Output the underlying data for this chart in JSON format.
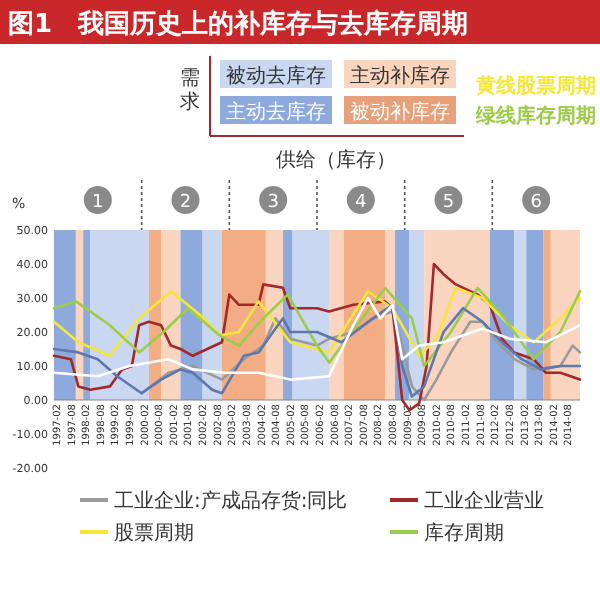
{
  "chart_data": {
    "type": "line",
    "title": "图1　我国历史上的补库存与去库存周期",
    "ylabel": "%",
    "xlim": [
      "1997-01",
      "2015-01"
    ],
    "xticks": [
      "1997-02",
      "1997-08",
      "1998-02",
      "1998-08",
      "1999-02",
      "1999-08",
      "2000-02",
      "2000-08",
      "2001-02",
      "2001-08",
      "2002-02",
      "2002-08",
      "2003-02",
      "2003-08",
      "2004-02",
      "2004-08",
      "2005-02",
      "2005-08",
      "2006-02",
      "2006-08",
      "2007-02",
      "2007-08",
      "2008-02",
      "2008-08",
      "2009-02",
      "2009-08",
      "2010-02",
      "2010-08",
      "2011-02",
      "2011-08",
      "2012-02",
      "2012-08",
      "2013-02",
      "2013-08",
      "2014-02",
      "2014-08"
    ],
    "ylim": [
      -20,
      50
    ],
    "yticks": [
      {
        "value": -20,
        "label": "-20.00"
      },
      {
        "value": -10,
        "label": "-10.00"
      },
      {
        "value": 0,
        "label": "0.00"
      },
      {
        "value": 10,
        "label": "10.00"
      },
      {
        "value": 20,
        "label": "20.00"
      },
      {
        "value": 30,
        "label": "30.00"
      },
      {
        "value": 40,
        "label": "40.00"
      },
      {
        "value": 50,
        "label": "50.00"
      }
    ],
    "legend": "bottom",
    "series": [
      {
        "name": "工业企业:产成品存货:同比",
        "color": "#9a9a9a",
        "x": [
          "2000-01",
          "2000-12",
          "2001-10",
          "2002-10",
          "2003-07",
          "2004-03",
          "2004-08",
          "2005-02",
          "2006-01",
          "2006-06",
          "2007-04",
          "2007-12",
          "2008-08",
          "2008-12",
          "2009-04",
          "2009-09",
          "2010-02",
          "2010-08",
          "2011-04",
          "2011-09",
          "2012-02",
          "2012-10",
          "2013-06",
          "2014-05",
          "2014-10",
          "2015-01"
        ],
        "values": [
          2,
          8,
          10,
          6,
          12,
          16,
          24,
          18,
          16,
          18,
          20,
          24,
          26,
          16,
          4,
          0,
          6,
          14,
          23,
          23,
          18,
          12,
          9,
          10,
          16,
          14
        ]
      },
      {
        "name": "工业企业营业",
        "color": "#a3282a",
        "x": [
          "1997-01",
          "1997-08",
          "1997-11",
          "1998-04",
          "1998-12",
          "1999-05",
          "1999-09",
          "1999-12",
          "2000-04",
          "2000-09",
          "2001-01",
          "2001-05",
          "2001-10",
          "2002-04",
          "2002-10",
          "2003-01",
          "2003-05",
          "2004-01",
          "2004-03",
          "2004-11",
          "2005-02",
          "2006-01",
          "2006-06",
          "2007-04",
          "2008-05",
          "2008-08",
          "2008-12",
          "2009-03",
          "2009-07",
          "2009-10",
          "2010-01",
          "2010-05",
          "2010-10",
          "2011-07",
          "2011-12",
          "2012-05",
          "2012-10",
          "2013-06",
          "2013-11",
          "2014-05",
          "2015-01"
        ],
        "values": [
          13,
          12,
          4,
          3,
          4,
          9,
          10,
          22,
          23,
          22,
          16,
          15,
          13,
          15,
          17,
          31,
          28,
          28,
          34,
          33,
          27,
          27,
          26,
          28,
          29,
          27,
          0,
          -3,
          -1,
          10,
          40,
          37,
          34,
          31,
          28,
          18,
          14,
          12,
          8,
          8,
          6
        ]
      },
      {
        "name": "股票周期",
        "color": "#f5e63a",
        "x": [
          "1997-01",
          "1997-11",
          "1998-12",
          "1999-12",
          "2001-01",
          "2002-01",
          "2002-09",
          "2003-05",
          "2004-01",
          "2005-02",
          "2006-06",
          "2007-10",
          "2008-08",
          "2009-07",
          "2010-02",
          "2010-10",
          "2011-09",
          "2012-08",
          "2013-06",
          "2014-05",
          "2015-01"
        ],
        "values": [
          23,
          17,
          13,
          24,
          32,
          25,
          19,
          20,
          29,
          17,
          14,
          32,
          27,
          13,
          18,
          33,
          30,
          22,
          17,
          24,
          30
        ]
      },
      {
        "name": "库存周期",
        "color": "#9ccc4a",
        "x": [
          "1997-01",
          "1997-10",
          "1998-12",
          "1999-12",
          "2000-10",
          "2001-08",
          "2002-09",
          "2003-05",
          "2004-03",
          "2005-01",
          "2006-01",
          "2006-06",
          "2008-05",
          "2009-04",
          "2009-09",
          "2010-08",
          "2011-07",
          "2012-05",
          "2013-06",
          "2014-05",
          "2015-01"
        ],
        "values": [
          27,
          29,
          22,
          14,
          20,
          27,
          19,
          16,
          24,
          31,
          16,
          11,
          33,
          24,
          10,
          20,
          33,
          25,
          12,
          20,
          32
        ]
      },
      {
        "color": "#5f77ab",
        "x": [
          "1997-01",
          "1997-11",
          "1998-07",
          "1999-03",
          "2000-01",
          "2000-09",
          "2001-05",
          "2001-10",
          "2002-06",
          "2002-10",
          "2003-07",
          "2004-01",
          "2004-08",
          "2004-11",
          "2005-02",
          "2006-01",
          "2006-11",
          "2007-12",
          "2008-08",
          "2008-12",
          "2009-04",
          "2009-09",
          "2010-05",
          "2011-01",
          "2011-09",
          "2012-05",
          "2013-01",
          "2013-09",
          "2014-05",
          "2015-01"
        ],
        "values": [
          15,
          14,
          12,
          7,
          2,
          6,
          9,
          8,
          3,
          2,
          13,
          14,
          21,
          24,
          20,
          20,
          17,
          24,
          28,
          10,
          1,
          4,
          20,
          27,
          23,
          17,
          12,
          9,
          10,
          10
        ]
      },
      {
        "color": "#ffffff",
        "x": [
          "1997-01",
          "1998-07",
          "1999-08",
          "2000-12",
          "2001-10",
          "2002-11",
          "2004-01",
          "2005-02",
          "2006-06",
          "2007-04",
          "2007-10",
          "2008-03",
          "2008-08",
          "2008-12",
          "2009-07",
          "2010-05",
          "2011-09",
          "2012-08",
          "2013-11",
          "2015-01"
        ],
        "values": [
          8,
          7,
          10,
          12,
          9,
          8,
          8,
          6,
          7,
          22,
          30,
          24,
          28,
          12,
          16,
          17,
          21,
          18,
          17,
          22
        ]
      }
    ],
    "bands": [
      {
        "axis": "x",
        "from": "1997-01",
        "to": "1997-10",
        "color": "#8ea9dc"
      },
      {
        "axis": "x",
        "from": "1997-10",
        "to": "1998-01",
        "color": "#f9d5bf"
      },
      {
        "axis": "x",
        "from": "1998-01",
        "to": "1998-04",
        "color": "#8ea9dc"
      },
      {
        "axis": "x",
        "from": "1998-04",
        "to": "2000-04",
        "color": "#c9d8f0"
      },
      {
        "axis": "x",
        "from": "2000-04",
        "to": "2000-09",
        "color": "#f2ad84"
      },
      {
        "axis": "x",
        "from": "2000-09",
        "to": "2001-05",
        "color": "#f9d5bf"
      },
      {
        "axis": "x",
        "from": "2001-05",
        "to": "2002-02",
        "color": "#8ea9dc"
      },
      {
        "axis": "x",
        "from": "2002-02",
        "to": "2002-10",
        "color": "#c9d8f0"
      },
      {
        "axis": "x",
        "from": "2002-10",
        "to": "2004-04",
        "color": "#f2ad84"
      },
      {
        "axis": "x",
        "from": "2004-04",
        "to": "2004-11",
        "color": "#f9d5bf"
      },
      {
        "axis": "x",
        "from": "2004-11",
        "to": "2005-03",
        "color": "#8ea9dc"
      },
      {
        "axis": "x",
        "from": "2005-03",
        "to": "2006-06",
        "color": "#c9d8f0"
      },
      {
        "axis": "x",
        "from": "2006-06",
        "to": "2006-12",
        "color": "#f9d5bf"
      },
      {
        "axis": "x",
        "from": "2006-12",
        "to": "2008-05",
        "color": "#f2ad84"
      },
      {
        "axis": "x",
        "from": "2008-05",
        "to": "2008-09",
        "color": "#f9d5bf"
      },
      {
        "axis": "x",
        "from": "2008-09",
        "to": "2009-03",
        "color": "#8ea9dc"
      },
      {
        "axis": "x",
        "from": "2009-03",
        "to": "2009-09",
        "color": "#c9d8f0"
      },
      {
        "axis": "x",
        "from": "2009-09",
        "to": "2011-12",
        "color": "#f9d5bf"
      },
      {
        "axis": "x",
        "from": "2011-12",
        "to": "2012-10",
        "color": "#8ea9dc"
      },
      {
        "axis": "x",
        "from": "2012-10",
        "to": "2013-03",
        "color": "#c9d8f0"
      },
      {
        "axis": "x",
        "from": "2013-03",
        "to": "2013-10",
        "color": "#8ea9dc"
      },
      {
        "axis": "x",
        "from": "2013-10",
        "to": "2014-01",
        "color": "#f2ad84"
      },
      {
        "axis": "x",
        "from": "2014-01",
        "to": "2015-01",
        "color": "#f9d5bf"
      }
    ],
    "annotations": [
      "1",
      "2",
      "3",
      "4",
      "5",
      "6",
      "需求",
      "供给（库存）",
      "被动去库存",
      "主动补库存",
      "主动去库存",
      "被动补库存",
      "黄线股票周期",
      "绿线库存周期"
    ]
  }
}
